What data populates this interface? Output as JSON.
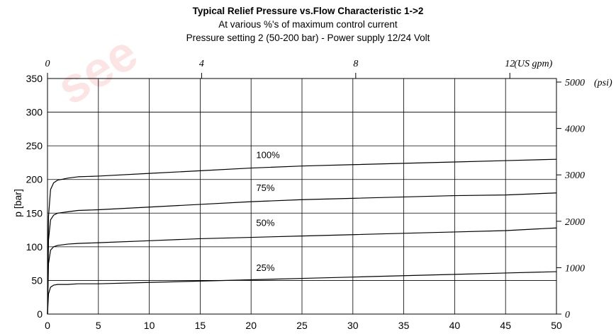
{
  "watermark": "see",
  "chart_data": {
    "type": "line",
    "title": "Typical Relief Pressure vs.Flow Characteristic 1->2",
    "subtitle": "At various %'s of maximum control current",
    "subtitle2": "Pressure setting 2 (50-200 bar) - Power supply 12/24 Volt",
    "xlabel": "",
    "ylabel": "p [bar]",
    "xlim": [
      0,
      50
    ],
    "ylim": [
      0,
      350
    ],
    "x_ticks": [
      0,
      5,
      10,
      15,
      20,
      25,
      30,
      35,
      40,
      45,
      50
    ],
    "y_ticks": [
      0,
      50,
      100,
      150,
      200,
      250,
      300,
      350
    ],
    "grid": true,
    "top_axis": {
      "unit_label": "(US gpm)",
      "ticks": [
        {
          "label": "0",
          "x": 0
        },
        {
          "label": "4",
          "x": 15.14
        },
        {
          "label": "8",
          "x": 30.28
        },
        {
          "label": "12",
          "x": 45.42
        }
      ]
    },
    "right_axis": {
      "unit_label": "(psi)",
      "ticks": [
        {
          "label": "0",
          "y": 0
        },
        {
          "label": "1000",
          "y": 68.95
        },
        {
          "label": "2000",
          "y": 137.9
        },
        {
          "label": "3000",
          "y": 206.84
        },
        {
          "label": "4000",
          "y": 275.79
        },
        {
          "label": "5000",
          "y": 344.74
        }
      ]
    },
    "series": [
      {
        "name": "100%",
        "label_at": [
          20.5,
          232
        ],
        "x": [
          0,
          0.1,
          0.3,
          0.6,
          1,
          2,
          3,
          5,
          10,
          15,
          20,
          25,
          30,
          35,
          40,
          45,
          50
        ],
        "y": [
          0,
          145,
          185,
          195,
          199,
          202,
          204,
          205,
          209,
          213,
          217,
          220,
          222,
          224,
          226,
          228,
          230
        ]
      },
      {
        "name": "75%",
        "label_at": [
          20.5,
          183
        ],
        "x": [
          0,
          0.1,
          0.3,
          0.6,
          1,
          2,
          3,
          5,
          10,
          15,
          20,
          25,
          30,
          35,
          40,
          45,
          50
        ],
        "y": [
          0,
          110,
          140,
          147,
          150,
          152,
          154,
          155,
          159,
          163,
          167,
          170,
          172,
          174,
          176,
          177,
          180
        ]
      },
      {
        "name": "50%",
        "label_at": [
          20.5,
          131
        ],
        "x": [
          0,
          0.1,
          0.3,
          0.6,
          1,
          2,
          3,
          5,
          10,
          15,
          20,
          25,
          30,
          35,
          40,
          45,
          50
        ],
        "y": [
          0,
          75,
          95,
          100,
          102,
          104,
          105,
          106,
          109,
          112,
          114,
          116,
          118,
          120,
          122,
          124,
          128
        ]
      },
      {
        "name": "25%",
        "label_at": [
          20.5,
          64
        ],
        "x": [
          0,
          0.1,
          0.3,
          0.6,
          1,
          2,
          3,
          5,
          10,
          15,
          20,
          25,
          30,
          35,
          40,
          45,
          50
        ],
        "y": [
          0,
          30,
          40,
          43,
          44,
          44,
          45,
          45,
          47,
          49,
          51,
          53,
          55,
          57,
          59,
          61,
          63
        ]
      }
    ]
  }
}
